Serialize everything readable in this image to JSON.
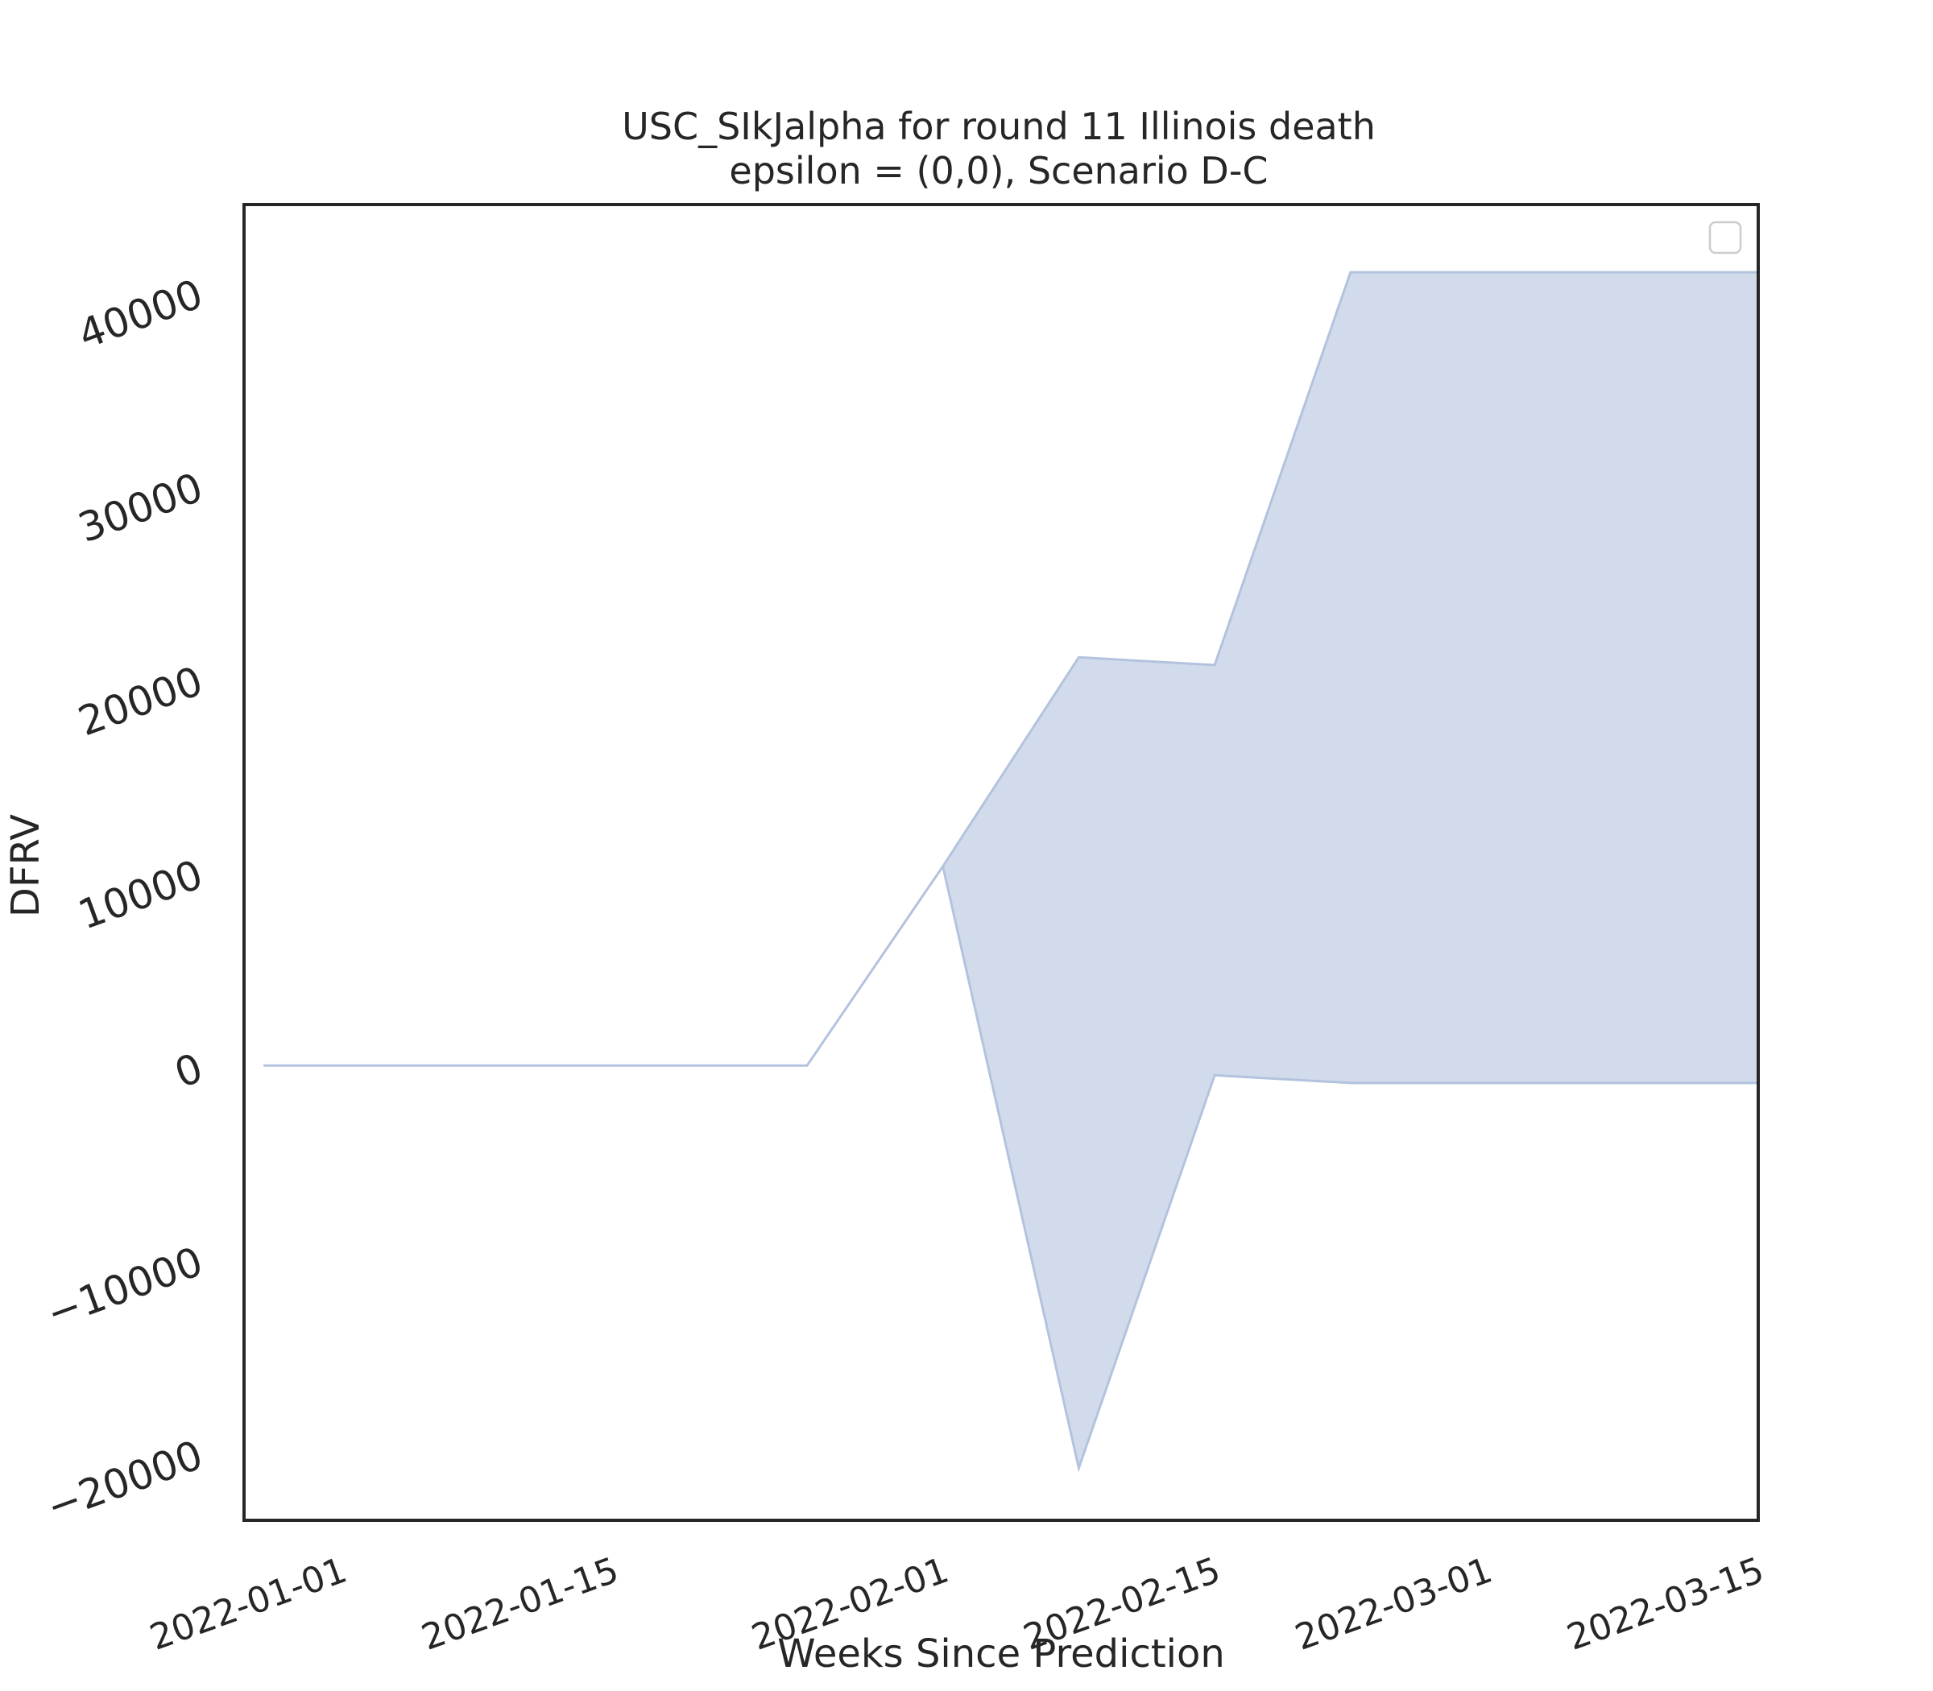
{
  "chart_data": {
    "type": "area",
    "title_line1": "USC_SIkJalpha for round 11 Illinois death",
    "title_line2": "epsilon = (0,0), Scenario D-C",
    "xlabel": "Weeks Since Prediction",
    "ylabel": "DFRV",
    "x_ticks": [
      "2022-01-01",
      "2022-01-15",
      "2022-02-01",
      "2022-02-15",
      "2022-03-01",
      "2022-03-15"
    ],
    "y_ticks": [
      "−20000",
      "−10000",
      "0",
      "10000",
      "20000",
      "30000",
      "40000"
    ],
    "y_tick_values": [
      -20000,
      -10000,
      0,
      10000,
      20000,
      30000,
      40000
    ],
    "xlim": [
      "2021-12-27",
      "2022-03-15"
    ],
    "ylim": [
      -23500,
      44500
    ],
    "grid": false,
    "legend": {
      "placement": "top-right",
      "entries": []
    },
    "colors": {
      "band_fill": "#d1dbec",
      "band_stroke": "#b3c3de",
      "axis": "#262626"
    },
    "band": {
      "x": [
        "2021-12-28",
        "2022-01-04",
        "2022-01-11",
        "2022-01-18",
        "2022-01-25",
        "2022-02-01",
        "2022-02-08",
        "2022-02-15",
        "2022-02-22",
        "2022-03-01",
        "2022-03-08",
        "2022-03-15"
      ],
      "lower": [
        0,
        0,
        0,
        0,
        0,
        10300,
        -20800,
        -500,
        -900,
        -900,
        -900,
        -900
      ],
      "upper": [
        0,
        0,
        0,
        0,
        0,
        10300,
        21100,
        20700,
        41000,
        41000,
        41000,
        41000
      ]
    }
  }
}
